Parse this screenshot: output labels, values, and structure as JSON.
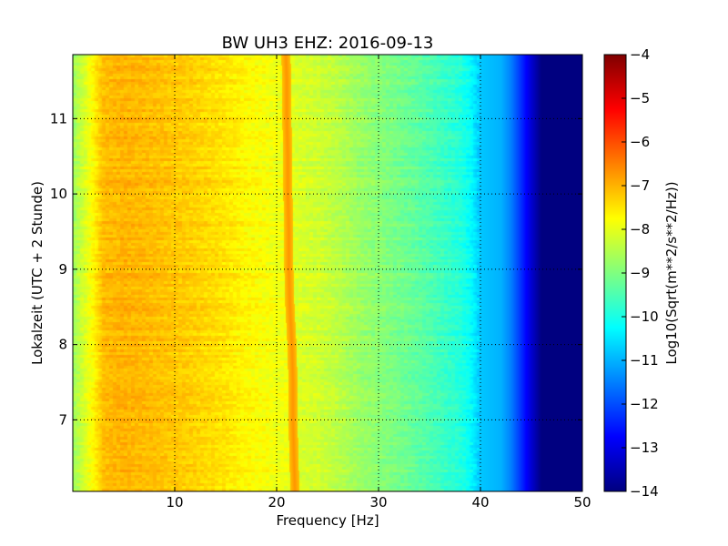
{
  "chart_data": {
    "type": "heatmap",
    "title": "BW UH3 EHZ: 2016-09-13",
    "xlabel": "Frequency [Hz]",
    "ylabel": "Lokalzeit (UTC + 2 Stunde)",
    "colorbar_label": "Log10(Sqrt(m**2/s**2/Hz))",
    "colormap": "jet",
    "xlim": [
      0,
      50
    ],
    "ylim": [
      11.85,
      6.05
    ],
    "y_inverted": true,
    "clim": [
      -14,
      -4
    ],
    "grid": true,
    "x_ticks": [
      10,
      20,
      30,
      40,
      50
    ],
    "y_ticks": [
      7,
      8,
      9,
      10,
      11
    ],
    "colorbar_ticks": [
      -4,
      -5,
      -6,
      -7,
      -8,
      -9,
      -10,
      -11,
      -12,
      -13,
      -14
    ],
    "spectrum_profile": {
      "frequency_hz": [
        0,
        1,
        2,
        3,
        5,
        8,
        10,
        12,
        15,
        17,
        19,
        20,
        21,
        22,
        24,
        26,
        28,
        30,
        33,
        36,
        38,
        39,
        40,
        42,
        43,
        44,
        45,
        46,
        50
      ],
      "log10_psd": [
        -8.7,
        -8.2,
        -7.7,
        -7.1,
        -7.0,
        -7.1,
        -7.2,
        -7.3,
        -7.5,
        -7.7,
        -7.8,
        -7.9,
        -7.9,
        -8.1,
        -8.2,
        -8.4,
        -8.7,
        -8.9,
        -9.2,
        -9.6,
        -9.9,
        -10.2,
        -10.8,
        -11.0,
        -11.5,
        -12.3,
        -13.2,
        -14.0,
        -14.0
      ]
    },
    "spectral_line": {
      "time_h": [
        6.05,
        6.5,
        7.0,
        7.5,
        8.0,
        8.5,
        9.0,
        9.5,
        10.0,
        10.5,
        11.0,
        11.5,
        11.85
      ],
      "frequency_hz": [
        21.8,
        21.7,
        21.6,
        21.6,
        21.5,
        21.3,
        21.2,
        21.2,
        21.1,
        21.1,
        21.0,
        21.0,
        20.9
      ],
      "log10_psd": -6.7
    }
  }
}
